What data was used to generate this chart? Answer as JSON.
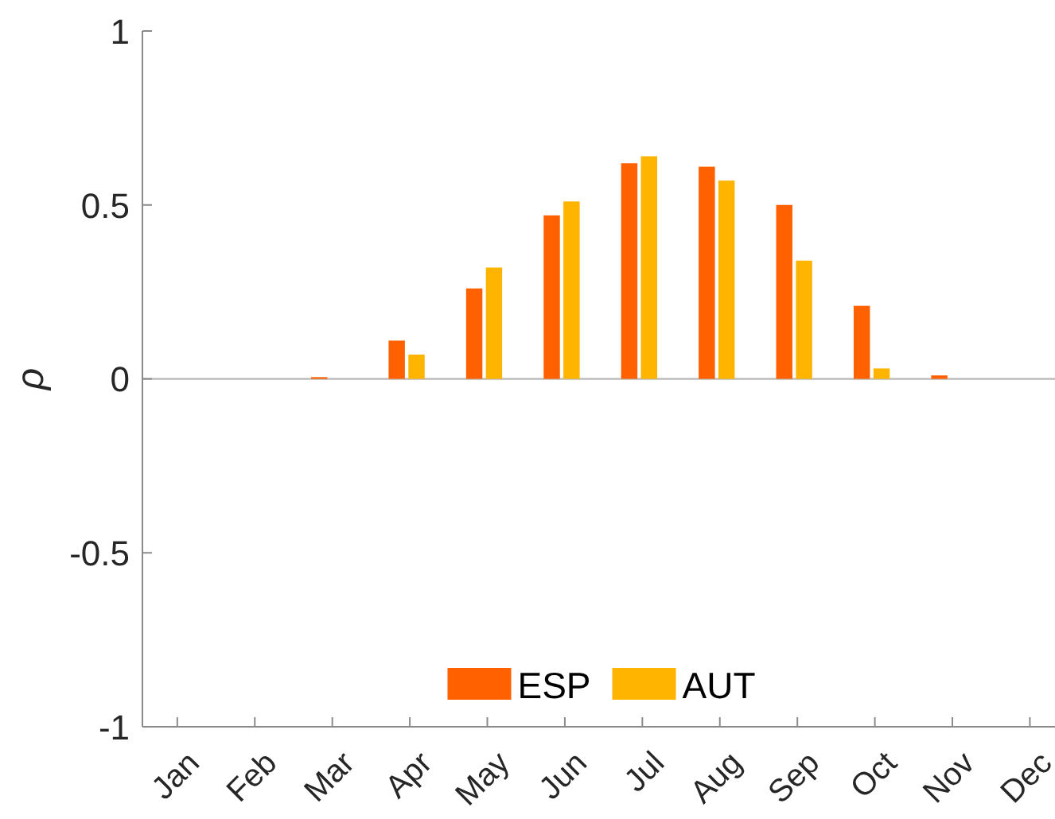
{
  "chart_data": {
    "type": "bar",
    "categories": [
      "Jan",
      "Feb",
      "Mar",
      "Apr",
      "May",
      "Jun",
      "Jul",
      "Aug",
      "Sep",
      "Oct",
      "Nov",
      "Dec"
    ],
    "ylabel": "ρ",
    "series": [
      {
        "name": "ESP",
        "color": "#ff6100",
        "values": [
          null,
          null,
          0.005,
          0.11,
          0.26,
          0.47,
          0.62,
          0.61,
          0.5,
          0.21,
          0.01,
          null
        ]
      },
      {
        "name": "AUT",
        "color": "#ffb400",
        "values": [
          null,
          null,
          null,
          0.07,
          0.32,
          0.51,
          0.64,
          0.57,
          0.34,
          0.03,
          null,
          null
        ]
      }
    ],
    "ylim": [
      -1,
      1
    ],
    "yticks": [
      -1,
      -0.5,
      0,
      0.5,
      1
    ],
    "grid": false,
    "legend": "bottom",
    "ref_lines": [
      {
        "axis": "y",
        "value": 0,
        "color": "#bdbdbd"
      }
    ]
  }
}
